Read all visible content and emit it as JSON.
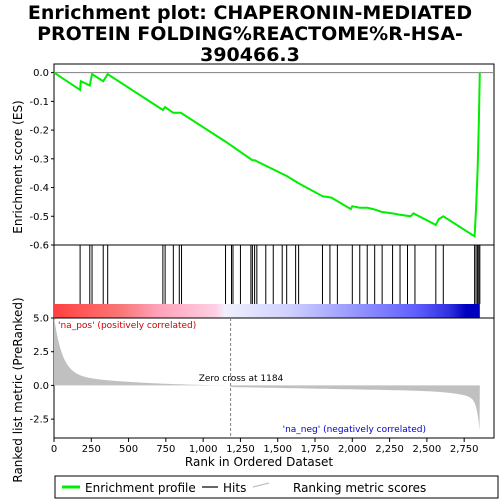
{
  "chart_data": {
    "type": "line",
    "title": [
      "Enrichment plot: CHAPERONIN-MEDIATED",
      "PROTEIN FOLDING%REACTOME%R-HSA-",
      "390466.3"
    ],
    "xlabel": "Rank in Ordered Dataset",
    "ylabel_top": "Enrichment score (ES)",
    "ylabel_bottom": "Ranked list metric (PreRanked)",
    "xlim": [
      0,
      2950
    ],
    "es_ylim": [
      -0.6,
      0.03
    ],
    "metric_ylim": [
      -3.9,
      5.0
    ],
    "x_ticks": [
      0,
      250,
      500,
      750,
      1000,
      1250,
      1500,
      1750,
      2000,
      2250,
      2500,
      2750
    ],
    "x_tick_labels": [
      "0",
      "250",
      "500",
      "750",
      "1,000",
      "1,250",
      "1,500",
      "1,750",
      "2,000",
      "2,250",
      "2,500",
      "2,750"
    ],
    "es_ticks": [
      0.0,
      -0.1,
      -0.2,
      -0.3,
      -0.4,
      -0.5,
      -0.6
    ],
    "es_tick_labels": [
      "0.0",
      "-0.1",
      "-0.2",
      "-0.3",
      "-0.4",
      "-0.5",
      "-0.6"
    ],
    "metric_ticks": [
      5.0,
      2.5,
      0.0,
      -2.5
    ],
    "metric_tick_labels": [
      "5.0",
      "2.5",
      "0.0",
      "-2.5"
    ],
    "es_curve": {
      "x": [
        0,
        175,
        180,
        240,
        255,
        330,
        360,
        730,
        745,
        800,
        850,
        1150,
        1330,
        1345,
        1560,
        1640,
        1800,
        1860,
        1990,
        2000,
        2050,
        2100,
        2140,
        2200,
        2270,
        2320,
        2390,
        2410,
        2560,
        2580,
        2610,
        2820,
        2830,
        2840,
        2848,
        2855
      ],
      "y": [
        0.0,
        -0.06,
        -0.03,
        -0.045,
        -0.005,
        -0.03,
        -0.005,
        -0.13,
        -0.12,
        -0.14,
        -0.14,
        -0.24,
        -0.305,
        -0.305,
        -0.36,
        -0.385,
        -0.43,
        -0.435,
        -0.475,
        -0.465,
        -0.47,
        -0.47,
        -0.475,
        -0.485,
        -0.49,
        -0.495,
        -0.5,
        -0.49,
        -0.53,
        -0.51,
        -0.5,
        -0.57,
        -0.47,
        -0.34,
        -0.18,
        0.0
      ]
    },
    "hits": [
      175,
      240,
      255,
      330,
      360,
      730,
      745,
      800,
      840,
      855,
      1150,
      1190,
      1200,
      1250,
      1320,
      1330,
      1345,
      1360,
      1420,
      1470,
      1530,
      1560,
      1620,
      1640,
      1800,
      1850,
      1900,
      2000,
      2050,
      2100,
      2150,
      2200,
      2270,
      2320,
      2370,
      2420,
      2560,
      2610,
      2820,
      2830,
      2840,
      2848,
      2855
    ],
    "zero_cross": 1184,
    "annotations": {
      "zero_cross": "Zero cross at 1184",
      "na_pos": "'na_pos' (positively correlated)",
      "na_neg": "'na_neg' (negatively correlated)"
    },
    "legend": [
      {
        "label": "Enrichment profile",
        "color": "#00ee00"
      },
      {
        "label": "Hits",
        "color": "#000000"
      },
      {
        "label": "Ranking metric scores",
        "color": "#c0c0c0"
      }
    ],
    "colors": {
      "es_line": "#00ee00",
      "metric_fill": "#c0c0c0",
      "zero_line": "#808080",
      "na_pos": "#cc0000",
      "na_neg": "#0000cc"
    }
  }
}
